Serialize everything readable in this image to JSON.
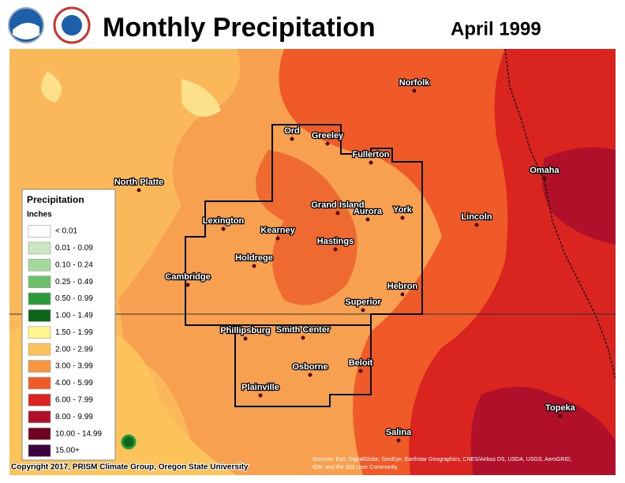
{
  "header": {
    "title": "Monthly Precipitation",
    "date": "April 1999"
  },
  "legend": {
    "title": "Precipitation",
    "units": "Inches",
    "items": [
      {
        "label": "< 0.01",
        "color": "#ffffff"
      },
      {
        "label": "0.01 - 0.09",
        "color": "#c9e8c2"
      },
      {
        "label": "0.10 - 0.24",
        "color": "#a3d99b"
      },
      {
        "label": "0.25 - 0.49",
        "color": "#6cc06a"
      },
      {
        "label": "0.50 - 0.99",
        "color": "#2b9a3b"
      },
      {
        "label": "1.00 - 1.49",
        "color": "#0b661a"
      },
      {
        "label": "1.50 - 1.99",
        "color": "#fff68c"
      },
      {
        "label": "2.00 - 2.99",
        "color": "#fcc35b"
      },
      {
        "label": "3.00 - 3.99",
        "color": "#f8953f"
      },
      {
        "label": "4.00 - 5.99",
        "color": "#ef5a28"
      },
      {
        "label": "6.00 - 7.99",
        "color": "#d92420"
      },
      {
        "label": "8.00 - 9.99",
        "color": "#b0102a"
      },
      {
        "label": "10.00 - 14.99",
        "color": "#700020"
      },
      {
        "label": "15.00+",
        "color": "#3a0040"
      }
    ]
  },
  "cities": [
    "Norfolk",
    "Ord",
    "Greeley",
    "Fullerton",
    "North Platte",
    "Omaha",
    "Grand Island",
    "Aurora",
    "York",
    "Lincoln",
    "Lexington",
    "Kearney",
    "Hastings",
    "Holdrege",
    "Cambridge",
    "Hebron",
    "Superior",
    "Phillipsburg",
    "Smith Center",
    "Osborne",
    "Beloit",
    "Plainville",
    "Topeka",
    "Salina"
  ],
  "footer": {
    "copyright": "Copyright 2017, PRISM Climate Group, Oregon State University",
    "sources": [
      "Sources: Esri, DigitalGlobe, GeoEye, Earthstar Geographics, CNES/Airbus DS, USDA, USGS, AeroGRID,",
      "IGN, and the GIS User Community"
    ]
  }
}
